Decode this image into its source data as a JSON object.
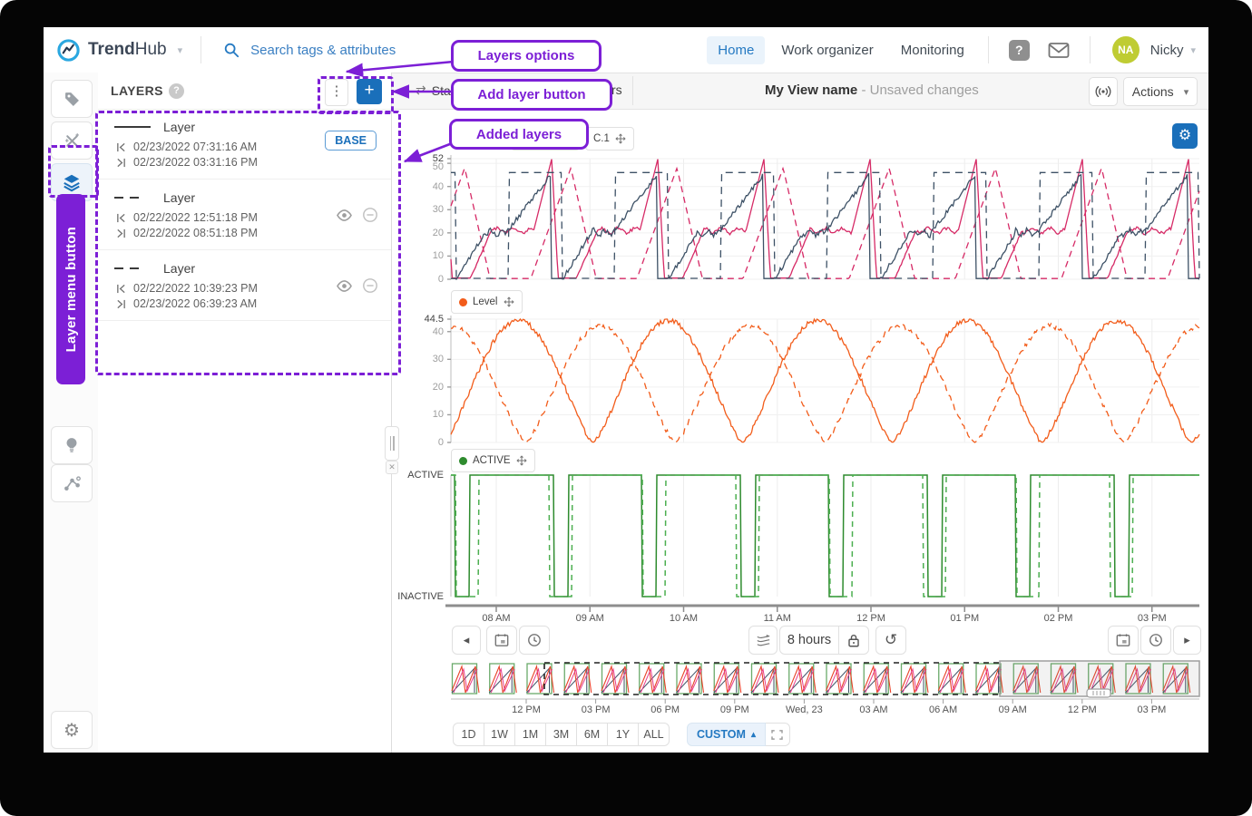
{
  "navbar": {
    "brand_bold": "Trend",
    "brand_light": "Hub",
    "search_placeholder": "Search tags & attributes",
    "nav_items": [
      {
        "label": "Home",
        "active": true
      },
      {
        "label": "Work organizer",
        "active": false
      },
      {
        "label": "Monitoring",
        "active": false
      }
    ],
    "user": {
      "initials": "NA",
      "name": "Nicky"
    }
  },
  "sidebar": {
    "items": [
      "tag",
      "calculations",
      "layers",
      "lightbulb",
      "scatter",
      "settings"
    ]
  },
  "layers_panel": {
    "title": "LAYERS",
    "items": [
      {
        "style": "solid",
        "name": "Layer",
        "start": "02/23/2022 07:31:16 AM",
        "end": "02/23/2022 03:31:16 PM",
        "badge": "BASE"
      },
      {
        "style": "dashed",
        "name": "Layer",
        "start": "02/22/2022 12:51:18 PM",
        "end": "02/22/2022 08:51:18 PM",
        "badge": null
      },
      {
        "style": "dashed",
        "name": "Layer",
        "start": "02/22/2022 10:39:23 PM",
        "end": "02/23/2022 06:39:23 AM",
        "badge": null
      }
    ]
  },
  "view_header": {
    "tab_fragment_left": "Sta",
    "tab_fragment_right": "rs",
    "title": "My View name",
    "status": "- Unsaved changes",
    "actions_label": "Actions"
  },
  "annotations": {
    "layers_options": "Layers options",
    "add_layer": "Add layer button",
    "added_layers": "Added layers",
    "layer_menu": "Layer menu button",
    "color": "#7c1fd6"
  },
  "toolbar": {
    "duration": "8 hours"
  },
  "bottom": {
    "range_buttons": [
      "1D",
      "1W",
      "1M",
      "3M",
      "6M",
      "1Y",
      "ALL"
    ],
    "custom_label": "CUSTOM"
  },
  "chart_data": [
    {
      "id": "analog-trends",
      "type": "line",
      "legend": [
        {
          "label": "",
          "color": null
        },
        {
          "label": "C.1",
          "color": null
        }
      ],
      "ylim": [
        0,
        52
      ],
      "yticks": [
        {
          "label": "52",
          "value": 52,
          "emph": true
        },
        {
          "label": "50",
          "value": 50,
          "emph": false
        },
        {
          "label": "40",
          "value": 40,
          "emph": false
        },
        {
          "label": "30",
          "value": 30,
          "emph": false
        },
        {
          "label": "20",
          "value": 20,
          "emph": false
        },
        {
          "label": "10",
          "value": 10,
          "emph": false
        },
        {
          "label": "0",
          "value": 0,
          "emph": false
        }
      ],
      "x_ticks": [
        "08 AM",
        "09 AM",
        "10 AM",
        "11 AM",
        "12 PM",
        "01 PM",
        "02 PM",
        "03 PM"
      ],
      "series": [
        {
          "name": "concentration-base",
          "color": "#d62a66",
          "dash": null,
          "kind": "plateau",
          "period": 117,
          "phase": 0.62,
          "peak": 52,
          "mid": 21,
          "noise": 0.7
        },
        {
          "name": "concentration-layer",
          "color": "#d62a66",
          "dash": "7 5",
          "kind": "tri",
          "period": 117,
          "phase": 0.25,
          "peak": 48,
          "mid": 0,
          "noise": 0.4
        },
        {
          "name": "temperature-base",
          "color": "#3d5166",
          "dash": null,
          "kind": "ramp",
          "period": 117,
          "phase": 0.0,
          "peak": 45,
          "mid": 20,
          "noise": 1.0
        },
        {
          "name": "temperature-layer",
          "color": "#3d5166",
          "dash": "8 6",
          "kind": "square",
          "period": 117,
          "phase": 0.45,
          "peak": 46,
          "duty": 0.5
        }
      ]
    },
    {
      "id": "level",
      "type": "line",
      "legend": [
        {
          "label": "Level",
          "color": "#f25c1a"
        }
      ],
      "ylim": [
        0,
        44.5
      ],
      "yticks": [
        {
          "label": "44.5",
          "value": 44.5,
          "emph": true
        },
        {
          "label": "40",
          "value": 40,
          "emph": false
        },
        {
          "label": "30",
          "value": 30,
          "emph": false
        },
        {
          "label": "20",
          "value": 20,
          "emph": false
        },
        {
          "label": "10",
          "value": 10,
          "emph": false
        },
        {
          "label": "0",
          "value": 0,
          "emph": false
        }
      ],
      "series": [
        {
          "name": "level-base",
          "color": "#f25c1a",
          "dash": null,
          "kind": "bell",
          "period": 165,
          "phase": 0.05,
          "peak": 44,
          "noise": 0.9
        },
        {
          "name": "level-layer",
          "color": "#f25c1a",
          "dash": "7 5",
          "kind": "bell",
          "period": 165,
          "phase": 0.5,
          "peak": 42,
          "noise": 0.9
        }
      ]
    },
    {
      "id": "digital-active",
      "type": "digital",
      "legend": [
        {
          "label": "ACTIVE",
          "color": "#2e8b2e"
        }
      ],
      "state_labels": [
        "ACTIVE",
        "INACTIVE"
      ],
      "series": [
        {
          "name": "active-base",
          "color": "#2e8b2e",
          "dash": null,
          "kind": "digital",
          "period": 206,
          "phase": 0.0,
          "off": [
            [
              0.02,
              0.1
            ],
            [
              0.55,
              0.63
            ]
          ]
        },
        {
          "name": "active-layer",
          "color": "#4caf50",
          "dash": "6 5",
          "kind": "digital",
          "period": 103,
          "phase": 0.3,
          "off": [
            [
              0.35,
              0.6
            ]
          ]
        }
      ]
    },
    {
      "id": "context-bar",
      "type": "context",
      "x_ticks": [
        "12 PM",
        "03 PM",
        "06 PM",
        "09 PM",
        "Wed, 23",
        "03 AM",
        "06 AM",
        "09 AM",
        "12 PM",
        "03 PM"
      ],
      "colors": {
        "red": "#e8442a",
        "pink": "#e83e8c",
        "navy": "#3d5166",
        "green": "#6aaa6a"
      },
      "selection": {
        "style": "dashed"
      },
      "window": {
        "position": "right"
      }
    }
  ]
}
